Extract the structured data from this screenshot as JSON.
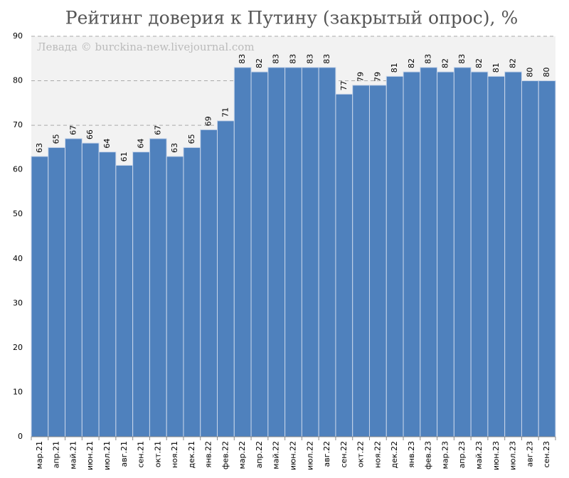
{
  "chart_data": {
    "type": "bar",
    "title": "Рейтинг доверия к Путину (закрытый опрос), %",
    "annotation": "Левада © burckina-new.livejournal.com",
    "categories": [
      "мар.21",
      "апр.21",
      "май.21",
      "июн.21",
      "июл.21",
      "авг.21",
      "сен.21",
      "окт.21",
      "ноя.21",
      "дек.21",
      "янв.22",
      "фев.22",
      "мар.22",
      "апр.22",
      "май.22",
      "июн.22",
      "июл.22",
      "авг.22",
      "сен.22",
      "окт.22",
      "ноя.22",
      "дек.22",
      "янв.23",
      "фев.23",
      "мар.23",
      "апр.23",
      "май.23",
      "июн.23",
      "июл.23",
      "авг.23",
      "сен.23"
    ],
    "values": [
      63,
      65,
      67,
      66,
      64,
      61,
      64,
      67,
      63,
      65,
      69,
      71,
      83,
      82,
      83,
      83,
      83,
      83,
      77,
      79,
      79,
      81,
      82,
      83,
      82,
      83,
      82,
      81,
      82,
      80,
      80
    ],
    "color": "#4f81bd",
    "ylim": [
      0,
      90
    ],
    "yticks": [
      0,
      10,
      20,
      30,
      40,
      50,
      60,
      70,
      80,
      90
    ],
    "grid": true
  }
}
